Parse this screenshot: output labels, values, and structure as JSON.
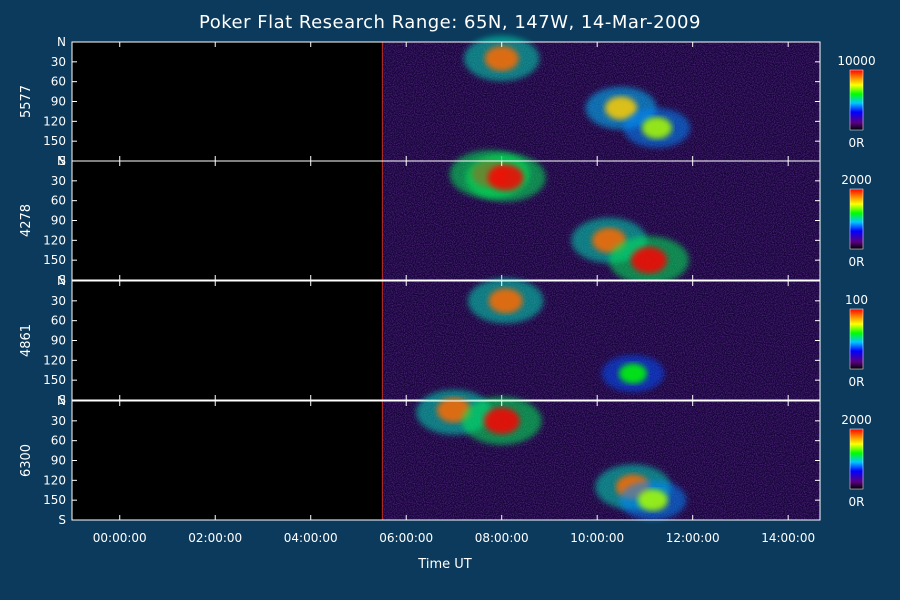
{
  "colors": {
    "background": "#0b3a5c",
    "panel": "#000000",
    "axis": "#ffffff",
    "text": "#ffffff"
  },
  "chart_data": {
    "type": "heatmap",
    "title": "Poker Flat Research Range: 65N, 147W, 14-Mar-2009",
    "xlabel": "Time UT",
    "x_ticks": [
      "00:00:00",
      "02:00:00",
      "04:00:00",
      "06:00:00",
      "08:00:00",
      "10:00:00",
      "12:00:00",
      "14:00:00"
    ],
    "x_range": [
      "-01:00:00",
      "14:40:00"
    ],
    "data_start": "05:30:00",
    "y_ticks": [
      "N",
      "30",
      "60",
      "90",
      "120",
      "150",
      "S"
    ],
    "y_range": [
      0,
      180
    ],
    "panels": [
      {
        "label": "5577",
        "colorbar_max": "10000",
        "colorbar_min": "0R",
        "features": [
          {
            "t": "08:00:00",
            "zenith": 25,
            "intensity": 0.9
          },
          {
            "t": "10:30:00",
            "zenith": 100,
            "intensity": 0.8
          },
          {
            "t": "11:15:00",
            "zenith": 130,
            "intensity": 0.7
          }
        ]
      },
      {
        "label": "4278",
        "colorbar_max": "2000",
        "colorbar_min": "0R",
        "features": [
          {
            "t": "07:45:00",
            "zenith": 20,
            "intensity": 1.0
          },
          {
            "t": "08:05:00",
            "zenith": 25,
            "intensity": 1.0
          },
          {
            "t": "10:15:00",
            "zenith": 120,
            "intensity": 0.9
          },
          {
            "t": "11:05:00",
            "zenith": 150,
            "intensity": 1.0
          }
        ]
      },
      {
        "label": "4861",
        "colorbar_max": "100",
        "colorbar_min": "0R",
        "features": [
          {
            "t": "08:05:00",
            "zenith": 30,
            "intensity": 0.9
          },
          {
            "t": "10:45:00",
            "zenith": 140,
            "intensity": 0.6
          }
        ]
      },
      {
        "label": "6300",
        "colorbar_max": "2000",
        "colorbar_min": "0R",
        "features": [
          {
            "t": "07:00:00",
            "zenith": 5,
            "intensity": 0.9
          },
          {
            "t": "08:00:00",
            "zenith": 30,
            "intensity": 1.0
          },
          {
            "t": "10:45:00",
            "zenith": 130,
            "intensity": 0.9
          },
          {
            "t": "11:10:00",
            "zenith": 150,
            "intensity": 0.7
          }
        ]
      }
    ]
  }
}
